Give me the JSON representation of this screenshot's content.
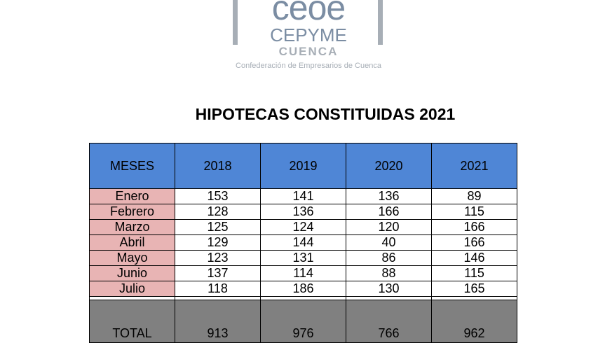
{
  "logo": {
    "brand_line1": "ceoe",
    "brand_line2": "CEPYME",
    "brand_line3": "CUENCA",
    "tagline": "Confederación de Empresarios de Cuenca"
  },
  "title": "HIPOTECAS CONSTITUIDAS 2021",
  "table": {
    "headers": [
      "MESES",
      "2018",
      "2019",
      "2020",
      "2021"
    ],
    "rows": [
      {
        "month": "Enero",
        "values": [
          "153",
          "141",
          "136",
          "89"
        ]
      },
      {
        "month": "Febrero",
        "values": [
          "128",
          "136",
          "166",
          "115"
        ]
      },
      {
        "month": "Marzo",
        "values": [
          "125",
          "124",
          "120",
          "166"
        ]
      },
      {
        "month": "Abril",
        "values": [
          "129",
          "144",
          "40",
          "166"
        ]
      },
      {
        "month": "Mayo",
        "values": [
          "123",
          "131",
          "86",
          "146"
        ]
      },
      {
        "month": "Junio",
        "values": [
          "137",
          "114",
          "88",
          "115"
        ]
      },
      {
        "month": "Julio",
        "values": [
          "118",
          "186",
          "130",
          "165"
        ]
      }
    ],
    "total": {
      "label": "TOTAL",
      "values": [
        "913",
        "976",
        "766",
        "962"
      ]
    }
  },
  "colors": {
    "header_bg": "#4f86d6",
    "month_bg": "#e8b4b4",
    "total_bg": "#808080",
    "logo_blue": "#7b8da3",
    "logo_gray": "#a7aeb6"
  }
}
